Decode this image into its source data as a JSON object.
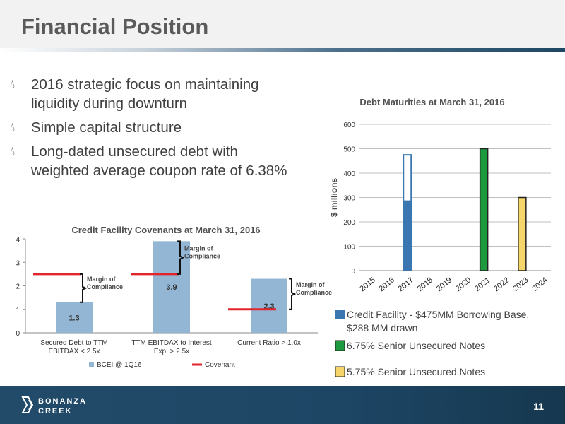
{
  "slide": {
    "title": "Financial Position",
    "page_number": "11",
    "logo_text": [
      "BONANZA",
      "CREEK"
    ]
  },
  "bullets": [
    {
      "lines": [
        "2016 strategic focus on maintaining",
        "liquidity during downturn"
      ]
    },
    {
      "lines": [
        "Simple capital structure"
      ]
    },
    {
      "lines": [
        "Long-dated unsecured debt with",
        "weighted average coupon rate of 6.38%"
      ]
    }
  ],
  "chart_data": [
    {
      "type": "bar",
      "title": "Credit Facility Covenants at March 31, 2016",
      "categories": [
        [
          "Secured Debt to TTM",
          "EBITDAX < 2.5x"
        ],
        [
          "TTM EBITDAX to Interest",
          "Exp. > 2.5x"
        ],
        [
          "Current Ratio > 1.0x"
        ]
      ],
      "series": [
        {
          "name": "BCEI @ 1Q16",
          "values": [
            1.3,
            3.9,
            2.3
          ],
          "labels": [
            "1.3",
            "3.9",
            "2.3"
          ],
          "color": "#93b6d4"
        },
        {
          "name": "Covenant",
          "values": [
            2.5,
            2.5,
            1.0
          ],
          "color": "#e2252b"
        }
      ],
      "ylim": [
        0,
        4
      ],
      "yticks": [
        "0",
        "1",
        "2",
        "3",
        "4"
      ],
      "annotations": [
        {
          "lines": [
            "Margin of",
            "Compliance"
          ],
          "category": 0,
          "from": 1.3,
          "to": 2.5
        },
        {
          "lines": [
            "Margin of",
            "Compliance"
          ],
          "category": 1,
          "from": 2.5,
          "to": 3.9
        },
        {
          "lines": [
            "Margin of",
            "Compliance"
          ],
          "category": 2,
          "from": 1.0,
          "to": 2.3
        }
      ],
      "legend_position": "bottom"
    },
    {
      "type": "bar",
      "title": "Debt Maturities at March 31, 2016",
      "ylabel": "$ millions",
      "categories": [
        "2015",
        "2016",
        "2017",
        "2018",
        "2019",
        "2020",
        "2021",
        "2022",
        "2023",
        "2024"
      ],
      "ylim": [
        0,
        600
      ],
      "yticks": [
        "0",
        "100",
        "200",
        "300",
        "400",
        "500",
        "600"
      ],
      "grid": true,
      "bars": [
        {
          "category": "2017",
          "value": 288,
          "capacity": 475,
          "series": 0
        },
        {
          "category": "2021",
          "value": 500,
          "series": 1
        },
        {
          "category": "2023",
          "value": 300,
          "series": 2
        }
      ],
      "series": [
        {
          "name": "Credit Facility - $475MM Borrowing Base, $288 MM drawn",
          "legend_lines": [
            "Credit Facility - $475MM Borrowing Base,",
            "$288 MM drawn"
          ],
          "color": "#3a77b0"
        },
        {
          "name": "6.75% Senior Unsecured Notes",
          "legend_lines": [
            "6.75% Senior Unsecured Notes"
          ],
          "color": "#1e9a3e"
        },
        {
          "name": "5.75% Senior Unsecured Notes",
          "legend_lines": [
            "5.75% Senior Unsecured Notes"
          ],
          "color": "#f6d66a"
        }
      ],
      "legend_position": "bottom"
    }
  ]
}
